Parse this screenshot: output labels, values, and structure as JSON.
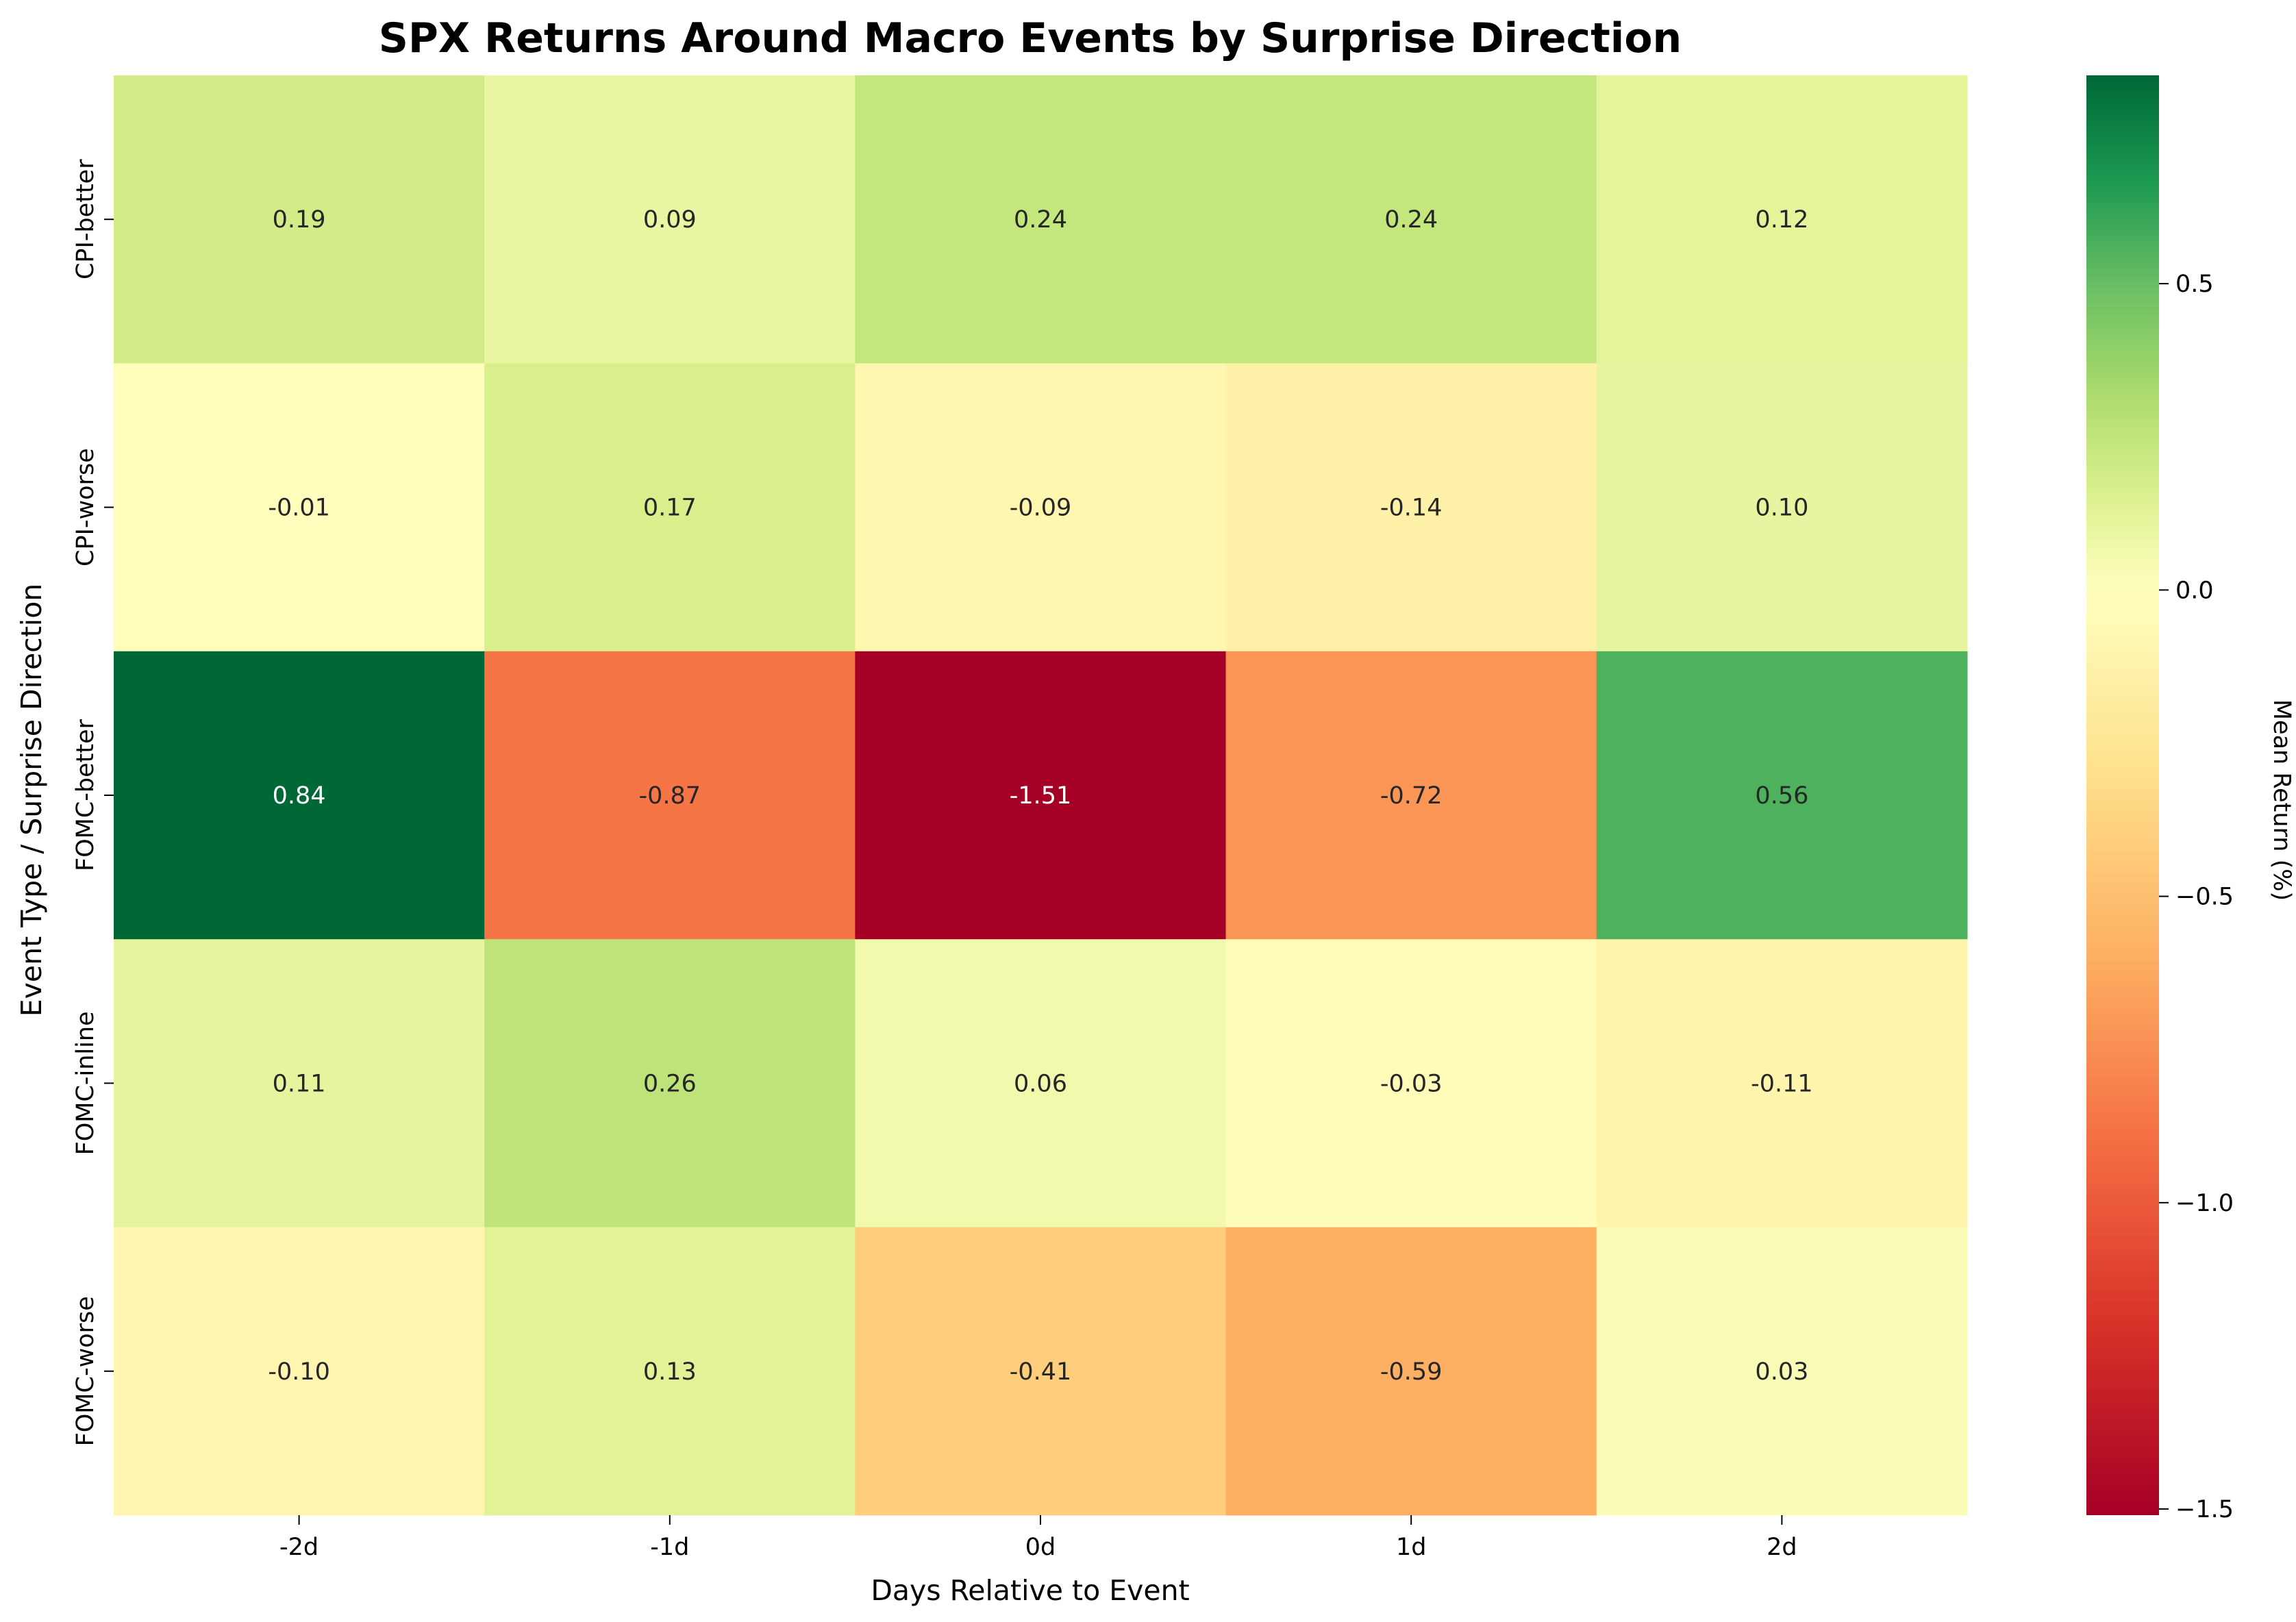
{
  "chart_data": {
    "type": "heatmap",
    "title": "SPX Returns Around Macro Events by Surprise Direction",
    "xlabel": "Days Relative to Event",
    "ylabel": "Event Type / Surprise Direction",
    "x_categories": [
      "-2d",
      "-1d",
      "0d",
      "1d",
      "2d"
    ],
    "y_categories": [
      "CPI-better",
      "CPI-worse",
      "FOMC-better",
      "FOMC-inline",
      "FOMC-worse"
    ],
    "values": [
      [
        0.19,
        0.09,
        0.24,
        0.24,
        0.12
      ],
      [
        -0.01,
        0.17,
        -0.09,
        -0.14,
        0.1
      ],
      [
        0.84,
        -0.87,
        -1.51,
        -0.72,
        0.56
      ],
      [
        0.11,
        0.26,
        0.06,
        -0.03,
        -0.11
      ],
      [
        -0.1,
        0.13,
        -0.41,
        -0.59,
        0.03
      ]
    ],
    "cell_labels": [
      [
        "0.19",
        "0.09",
        "0.24",
        "0.24",
        "0.12"
      ],
      [
        "-0.01",
        "0.17",
        "-0.09",
        "-0.14",
        "0.10"
      ],
      [
        "0.84",
        "-0.87",
        "-1.51",
        "-0.72",
        "0.56"
      ],
      [
        "0.11",
        "0.26",
        "0.06",
        "-0.03",
        "-0.11"
      ],
      [
        "-0.10",
        "0.13",
        "-0.41",
        "-0.59",
        "0.03"
      ]
    ],
    "colormap": "RdYlGn",
    "vmin": -1.51,
    "vmax": 0.84,
    "colorbar": {
      "label": "Mean Return (%)",
      "ticks": [
        0.5,
        0.0,
        -0.5,
        -1.0,
        -1.5
      ],
      "tick_labels": [
        "0.5",
        "0.0",
        "−0.5",
        "−1.0",
        "−1.5"
      ]
    },
    "legend": "colorbar-right",
    "grid": false
  }
}
